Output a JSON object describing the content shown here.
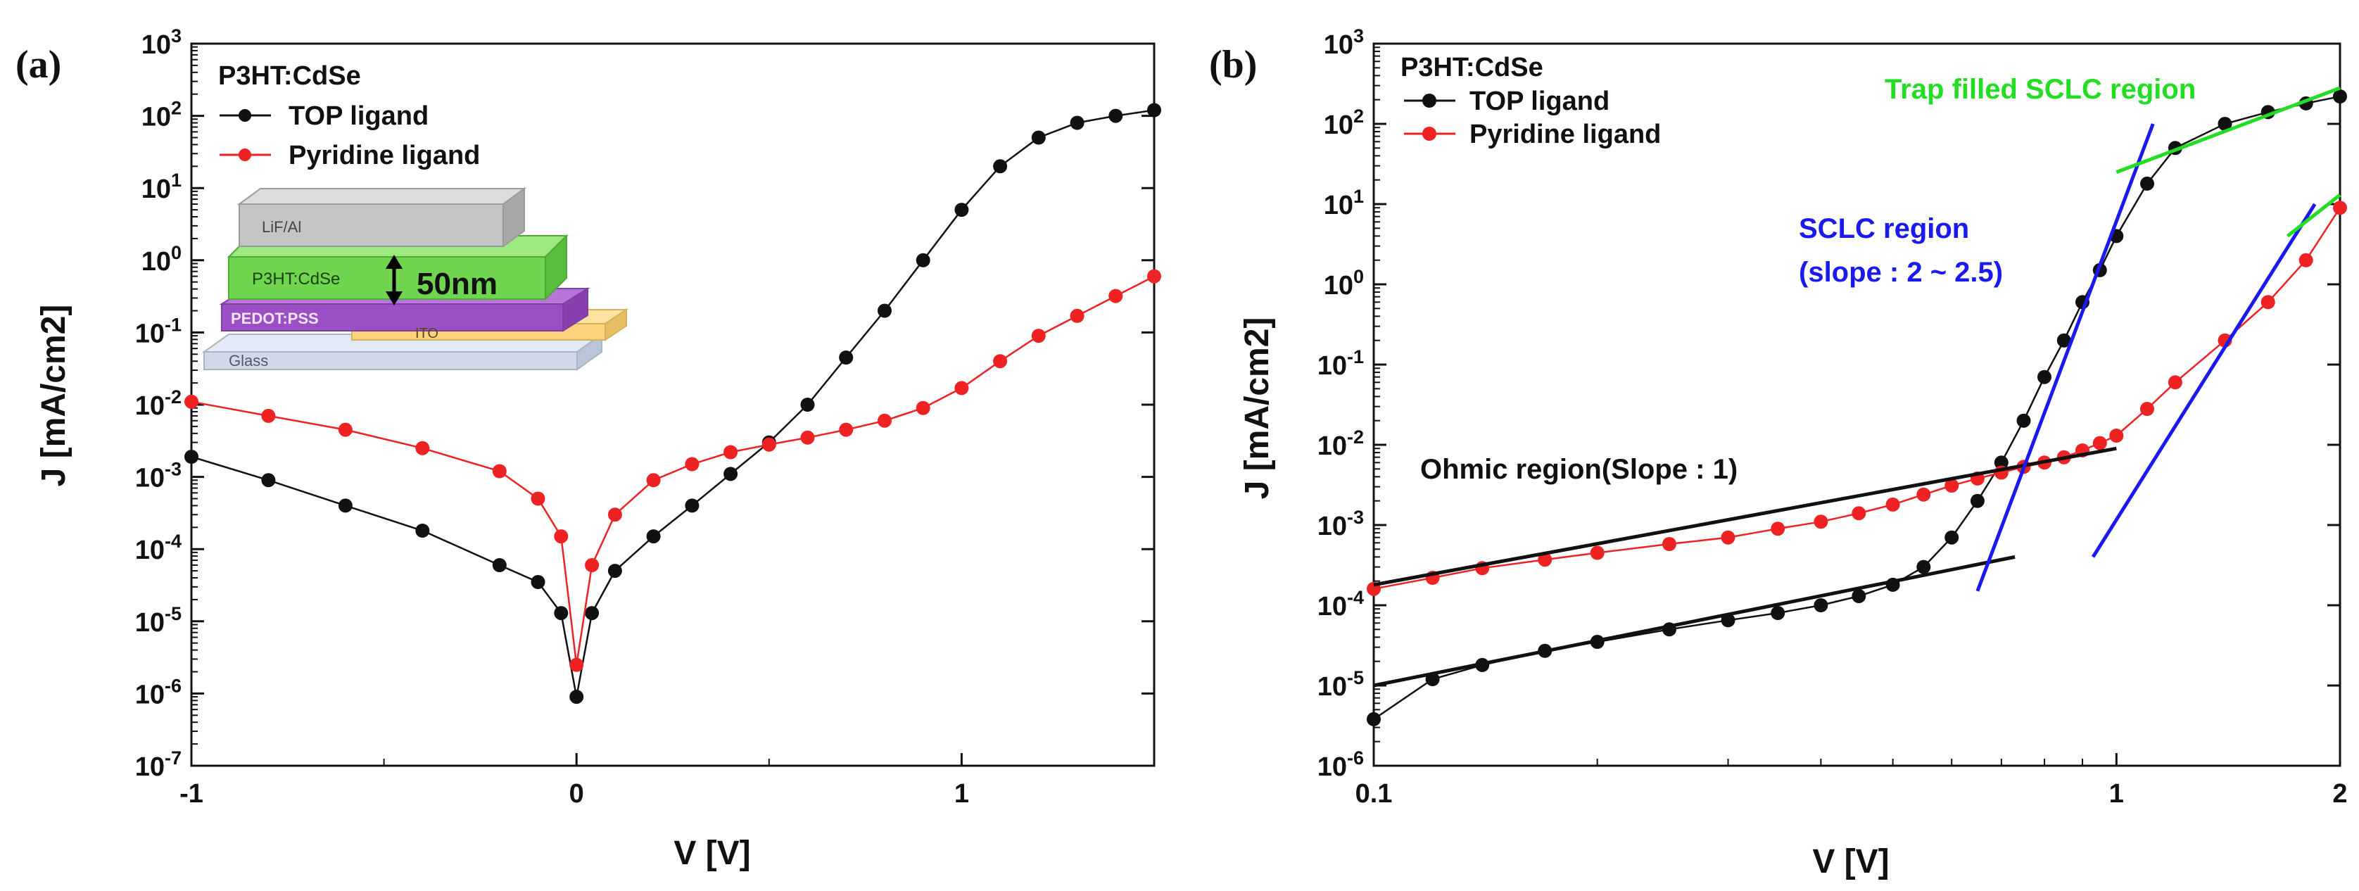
{
  "chart_data": [
    {
      "panel_label": "(a)",
      "type": "scatter",
      "xlabel": "V [V]",
      "ylabel": "J [mA/cm2]",
      "yscale": "log",
      "xlim": [
        -1,
        1.5
      ],
      "ylim": [
        1e-07,
        1000
      ],
      "xticks": [
        -1,
        0,
        1
      ],
      "yticks": [
        1e-07,
        1e-06,
        1e-05,
        0.0001,
        0.001,
        0.01,
        0.1,
        1,
        10,
        100,
        1000
      ],
      "legend_title": "P3HT:CdSe",
      "legend_position": "top-left",
      "series": [
        {
          "name": "TOP ligand",
          "color": "#111111",
          "x": [
            -1.0,
            -0.8,
            -0.6,
            -0.4,
            -0.2,
            -0.1,
            -0.04,
            0.0,
            0.04,
            0.1,
            0.2,
            0.3,
            0.4,
            0.5,
            0.6,
            0.7,
            0.8,
            0.9,
            1.0,
            1.1,
            1.2,
            1.3,
            1.4,
            1.5
          ],
          "y": [
            0.0019,
            0.0009,
            0.0004,
            0.00018,
            6e-05,
            3.5e-05,
            1.3e-05,
            9e-07,
            1.3e-05,
            5e-05,
            0.00015,
            0.0004,
            0.0011,
            0.003,
            0.01,
            0.045,
            0.2,
            1.0,
            5,
            20,
            50,
            80,
            100,
            120
          ]
        },
        {
          "name": "Pyridine ligand",
          "color": "#ee2222",
          "x": [
            -1.0,
            -0.8,
            -0.6,
            -0.4,
            -0.2,
            -0.1,
            -0.04,
            0.0,
            0.04,
            0.1,
            0.2,
            0.3,
            0.4,
            0.5,
            0.6,
            0.7,
            0.8,
            0.9,
            1.0,
            1.1,
            1.2,
            1.3,
            1.4,
            1.5
          ],
          "y": [
            0.011,
            0.007,
            0.0045,
            0.0025,
            0.0012,
            0.0005,
            0.00015,
            2.5e-06,
            6e-05,
            0.0003,
            0.0009,
            0.0015,
            0.0022,
            0.0028,
            0.0035,
            0.0045,
            0.006,
            0.009,
            0.017,
            0.04,
            0.09,
            0.17,
            0.32,
            0.6
          ]
        }
      ],
      "inset": {
        "layers": [
          "LiF/Al",
          "P3HT:CdSe",
          "PEDOT:PSS",
          "ITO",
          "Glass"
        ],
        "thickness_label": "50nm"
      }
    },
    {
      "panel_label": "(b)",
      "type": "scatter",
      "xlabel": "V [V]",
      "ylabel": "J [mA/cm2]",
      "xscale": "log",
      "yscale": "log",
      "xlim": [
        0.1,
        2
      ],
      "ylim": [
        1e-06,
        1000
      ],
      "xticks": [
        0.1,
        1,
        2
      ],
      "yticks": [
        1e-06,
        1e-05,
        0.0001,
        0.001,
        0.01,
        0.1,
        1,
        10,
        100,
        1000
      ],
      "legend_title": "P3HT:CdSe",
      "legend_position": "top-left",
      "series": [
        {
          "name": "TOP ligand",
          "color": "#111111",
          "x": [
            0.1,
            0.12,
            0.14,
            0.17,
            0.2,
            0.25,
            0.3,
            0.35,
            0.4,
            0.45,
            0.5,
            0.55,
            0.6,
            0.65,
            0.7,
            0.75,
            0.8,
            0.85,
            0.9,
            0.95,
            1.0,
            1.1,
            1.2,
            1.4,
            1.6,
            1.8,
            2.0
          ],
          "y": [
            3.8e-06,
            1.2e-05,
            1.8e-05,
            2.7e-05,
            3.5e-05,
            5e-05,
            6.5e-05,
            8e-05,
            0.0001,
            0.00013,
            0.00018,
            0.0003,
            0.0007,
            0.002,
            0.006,
            0.02,
            0.07,
            0.2,
            0.6,
            1.5,
            4,
            18,
            50,
            100,
            140,
            180,
            220
          ]
        },
        {
          "name": "Pyridine ligand",
          "color": "#ee2222",
          "x": [
            0.1,
            0.12,
            0.14,
            0.17,
            0.2,
            0.25,
            0.3,
            0.35,
            0.4,
            0.45,
            0.5,
            0.55,
            0.6,
            0.65,
            0.7,
            0.75,
            0.8,
            0.85,
            0.9,
            0.95,
            1.0,
            1.1,
            1.2,
            1.4,
            1.6,
            1.8,
            2.0
          ],
          "y": [
            0.00016,
            0.00022,
            0.00029,
            0.00037,
            0.00045,
            0.00058,
            0.0007,
            0.0009,
            0.0011,
            0.0014,
            0.0018,
            0.0024,
            0.0031,
            0.0038,
            0.0045,
            0.0053,
            0.006,
            0.007,
            0.0085,
            0.0105,
            0.013,
            0.028,
            0.06,
            0.2,
            0.6,
            2.0,
            9.0
          ]
        }
      ],
      "annotations": [
        {
          "text": "Trap filled SCLC region",
          "color": "#22dd22"
        },
        {
          "text": "SCLC region",
          "color": "#1a1aee"
        },
        {
          "text": "(slope : 2 ~ 2.5)",
          "color": "#1a1aee"
        },
        {
          "text": "Ohmic region(Slope : 1)",
          "color": "#111111"
        }
      ],
      "fit_lines": [
        {
          "color": "#111111",
          "x": [
            0.1,
            0.73
          ],
          "y": [
            1e-05,
            0.0004
          ]
        },
        {
          "color": "#111111",
          "x": [
            0.1,
            1.0
          ],
          "y": [
            0.00018,
            0.009
          ]
        },
        {
          "color": "#1a1aee",
          "x": [
            0.65,
            1.12
          ],
          "y": [
            0.00015,
            100
          ]
        },
        {
          "color": "#1a1aee",
          "x": [
            0.93,
            1.85
          ],
          "y": [
            0.0004,
            10
          ]
        },
        {
          "color": "#22dd22",
          "x": [
            1.0,
            2.0
          ],
          "y": [
            25,
            280
          ]
        },
        {
          "color": "#22dd22",
          "x": [
            1.7,
            2.0
          ],
          "y": [
            4,
            13
          ]
        }
      ]
    }
  ]
}
